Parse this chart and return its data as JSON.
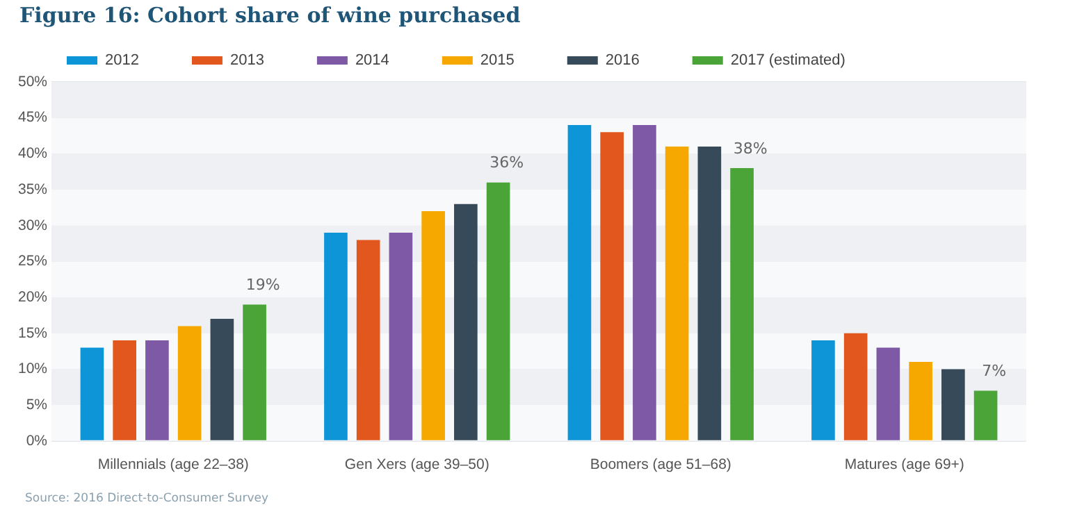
{
  "chart_data": {
    "type": "bar",
    "title": "Figure 16: Cohort share of wine purchased",
    "categories": [
      "Millennials (age 22–38)",
      "Gen Xers (age 39–50)",
      "Boomers (age 51–68)",
      "Matures (age 69+)"
    ],
    "series": [
      {
        "name": "2012",
        "color": "#0e95d8",
        "values": [
          13,
          29,
          44,
          14
        ]
      },
      {
        "name": "2013",
        "color": "#e2571e",
        "values": [
          14,
          28,
          43,
          15
        ]
      },
      {
        "name": "2014",
        "color": "#7e59a6",
        "values": [
          14,
          29,
          44,
          13
        ]
      },
      {
        "name": "2015",
        "color": "#f6a800",
        "values": [
          16,
          32,
          41,
          11
        ]
      },
      {
        "name": "2016",
        "color": "#374a59",
        "values": [
          17,
          33,
          41,
          10
        ]
      },
      {
        "name": "2017 (estimated)",
        "color": "#4aa437",
        "values": [
          19,
          36,
          38,
          7
        ],
        "value_labels": [
          "19%",
          "36%",
          "38%",
          "7%"
        ]
      }
    ],
    "ylim": [
      0,
      50
    ],
    "yticks": [
      {
        "value": 0,
        "label": "0%"
      },
      {
        "value": 5,
        "label": "5%"
      },
      {
        "value": 10,
        "label": "10%"
      },
      {
        "value": 15,
        "label": "15%"
      },
      {
        "value": 20,
        "label": "20%"
      },
      {
        "value": 25,
        "label": "25%"
      },
      {
        "value": 30,
        "label": "30%"
      },
      {
        "value": 35,
        "label": "35%"
      },
      {
        "value": 40,
        "label": "40%"
      },
      {
        "value": 45,
        "label": "45%"
      },
      {
        "value": 50,
        "label": "50%"
      }
    ],
    "grid": "y",
    "legend": "top",
    "annotations": [
      "Source: 2016 Direct-to-Consumer Survey"
    ]
  }
}
